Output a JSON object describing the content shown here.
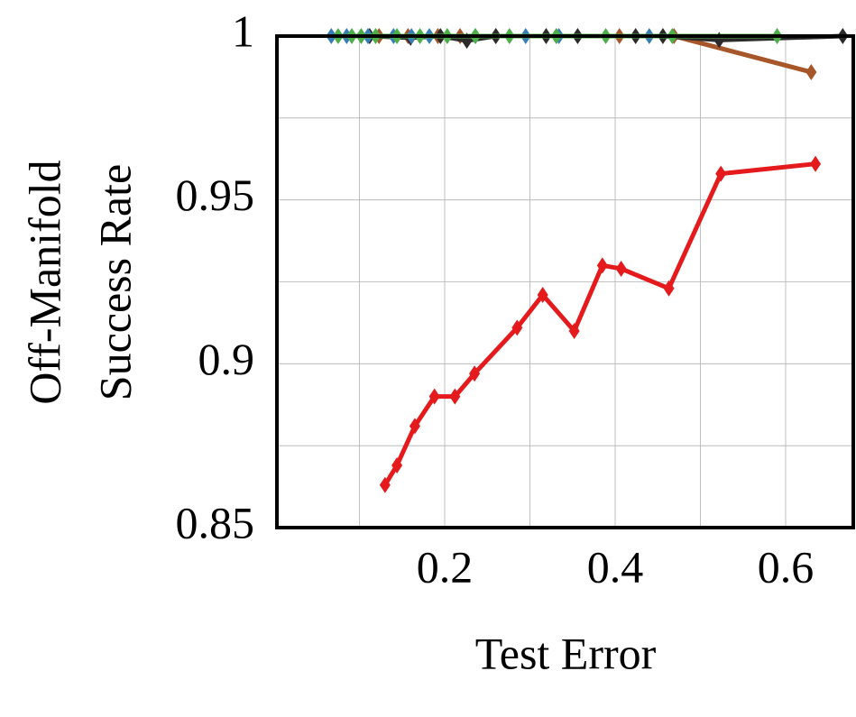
{
  "chart_data": {
    "type": "line",
    "x_label": "Test Error",
    "y_label": [
      "Off-Manifold",
      "Success Rate"
    ],
    "xlim": [
      0,
      0.68
    ],
    "xticks": [
      0.2,
      0.4,
      0.6
    ],
    "minor_xticks": [
      0.1,
      0.3,
      0.5
    ],
    "ylim": [
      0.85,
      1
    ],
    "yticks": [
      0.85,
      0.9,
      0.95,
      1
    ],
    "minor_yticks": [
      0.875,
      0.925,
      0.975
    ],
    "grid": true,
    "series": [
      {
        "color": "#e41a1c",
        "x": [
          0.13,
          0.144,
          0.165,
          0.188,
          0.212,
          0.235,
          0.285,
          0.315,
          0.352,
          0.385,
          0.407,
          0.463,
          0.524,
          0.635
        ],
        "values": [
          0.863,
          0.869,
          0.881,
          0.89,
          0.89,
          0.897,
          0.911,
          0.921,
          0.91,
          0.93,
          0.929,
          0.923,
          0.958,
          0.961
        ]
      },
      {
        "color": "#a65628",
        "x": [
          0.123,
          0.157,
          0.192,
          0.218,
          0.26,
          0.331,
          0.405,
          0.469,
          0.63
        ],
        "values": [
          1,
          1,
          1,
          1,
          1,
          1,
          1,
          1,
          0.989
        ]
      },
      {
        "color": "#2b2b2b",
        "x": [
          0.112,
          0.16,
          0.195,
          0.226,
          0.26,
          0.319,
          0.356,
          0.424,
          0.456,
          0.522,
          0.667
        ],
        "values": [
          1,
          0.9995,
          1,
          0.9986,
          1,
          1,
          1,
          1,
          1,
          0.9988,
          1
        ]
      },
      {
        "color": "#377eb8",
        "x": [
          0.067,
          0.085,
          0.11,
          0.14,
          0.161,
          0.182,
          0.236,
          0.295,
          0.334,
          0.44
        ],
        "values": [
          1,
          1,
          1,
          1,
          1,
          1,
          1,
          1,
          1,
          1
        ]
      },
      {
        "color": "#4daf4a",
        "x": [
          0.075,
          0.091,
          0.102,
          0.119,
          0.144,
          0.171,
          0.203,
          0.236,
          0.276,
          0.331,
          0.389,
          0.467,
          0.59
        ],
        "values": [
          1,
          1,
          1,
          1,
          1,
          1,
          1,
          1,
          1,
          1,
          1,
          1,
          1
        ]
      }
    ]
  }
}
